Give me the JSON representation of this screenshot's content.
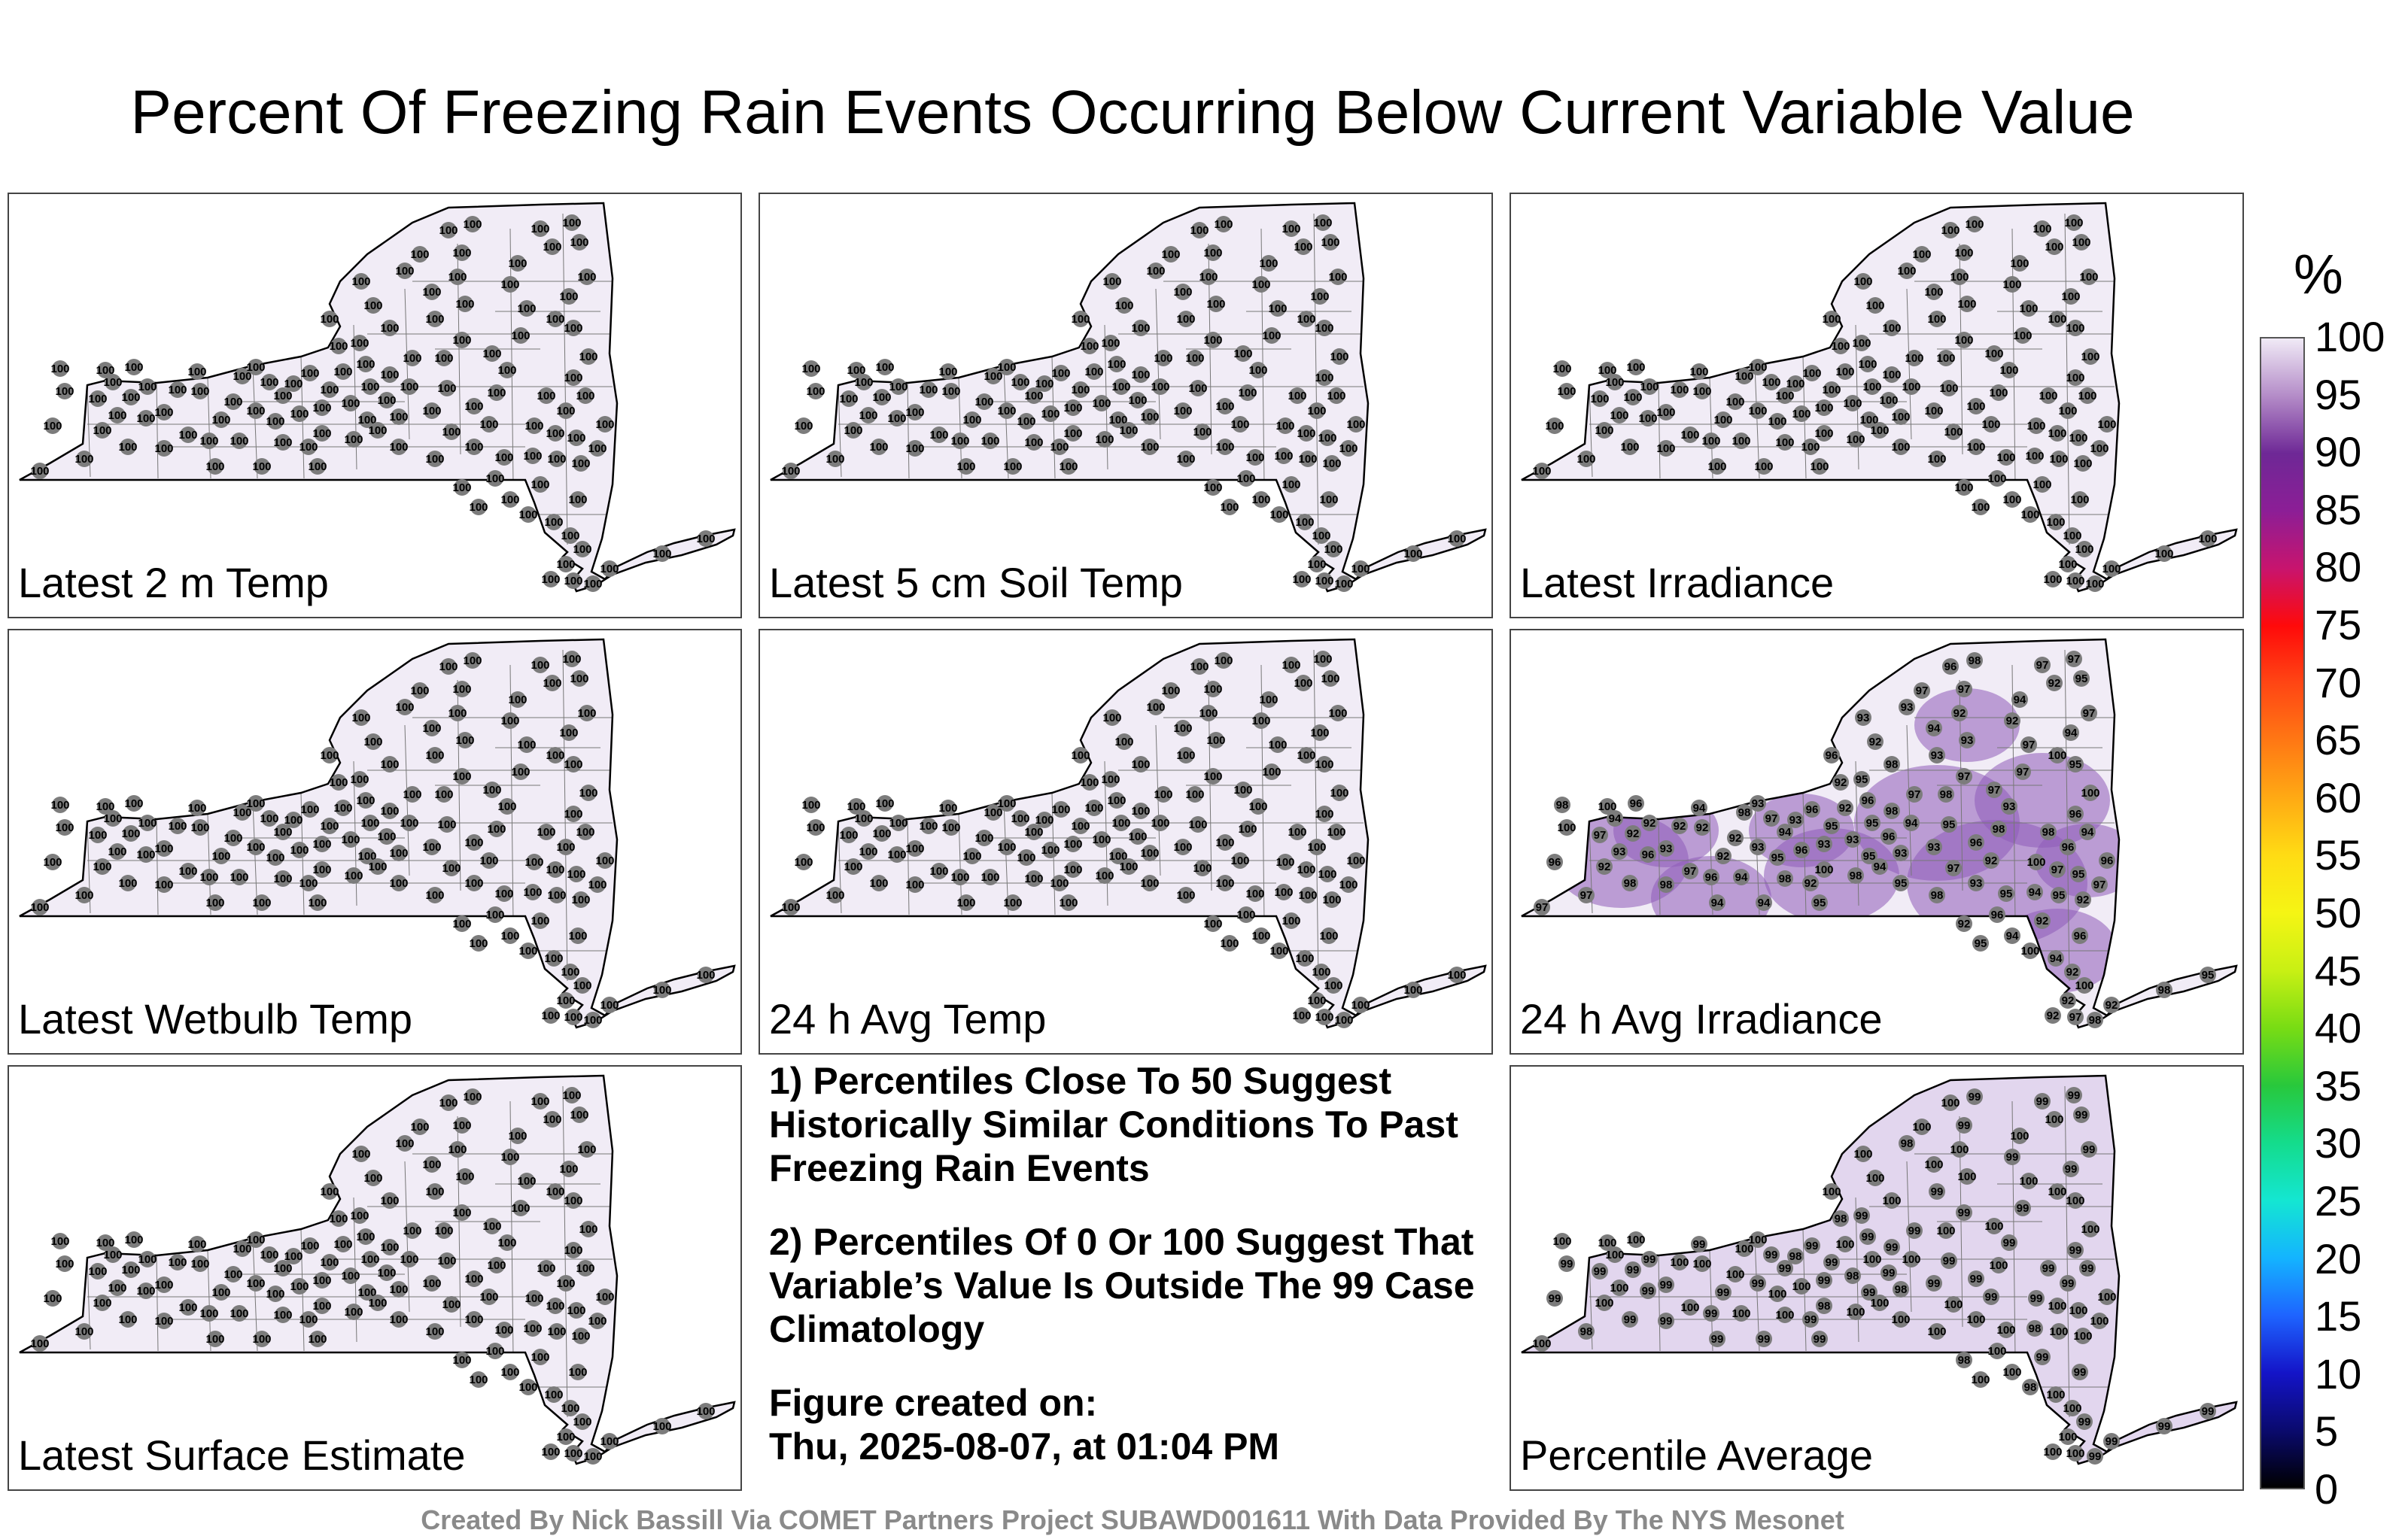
{
  "title": "Percent Of Freezing Rain Events Occurring Below Current Variable Value",
  "panels": [
    {
      "label": "Latest 2 m Temp",
      "values": [
        "100"
      ],
      "shade": "none"
    },
    {
      "label": "Latest 5 cm Soil Temp",
      "values": [
        "100"
      ],
      "shade": "none"
    },
    {
      "label": "Latest Irradiance",
      "values": [
        "100"
      ],
      "shade": "none"
    },
    {
      "label": "Latest Wetbulb Temp",
      "values": [
        "100"
      ],
      "shade": "none"
    },
    {
      "label": "24 h Avg Temp",
      "values": [
        "100"
      ],
      "shade": "none"
    },
    {
      "label": "24 h Avg Irradiance",
      "values": [
        "92",
        "93",
        "94",
        "95",
        "96",
        "97",
        "98",
        "100"
      ],
      "shade": "strong"
    },
    {
      "label": "Latest Surface Estimate",
      "values": [
        "100"
      ],
      "shade": "none"
    },
    {
      "label": "Percentile Average",
      "values": [
        "99",
        "100",
        "98"
      ],
      "shade": "light"
    }
  ],
  "notes": {
    "line1": "1) Percentiles Close To 50 Suggest Historically Similar Conditions To Past Freezing Rain Events",
    "line2": "2) Percentiles Of 0 Or 100 Suggest That Variable’s Value Is Outside The 99 Case Climatology",
    "line3a": "Figure created on:",
    "line3b": "Thu, 2025-08-07, at 01:04 PM"
  },
  "colorbar": {
    "title": "%",
    "ticks": [
      "100",
      "95",
      "90",
      "85",
      "80",
      "75",
      "70",
      "65",
      "60",
      "55",
      "50",
      "45",
      "40",
      "35",
      "30",
      "25",
      "20",
      "15",
      "10",
      "5",
      "0"
    ],
    "colors": [
      "#000000",
      "#0a0a6e",
      "#1414c8",
      "#1e64ff",
      "#14b4ff",
      "#14e6d2",
      "#14dc8c",
      "#28c83c",
      "#78dc14",
      "#c8f014",
      "#f5f514",
      "#ffdc14",
      "#ffaa14",
      "#ff7814",
      "#ff4614",
      "#ff0a0a",
      "#c8146e",
      "#8c1e96",
      "#6e2896",
      "#b48cc8",
      "#f0eaf6"
    ]
  },
  "credit": "Created By Nick Bassill Via COMET Partners Project SUBAWD001611 With Data Provided By The NYS Mesonet"
}
